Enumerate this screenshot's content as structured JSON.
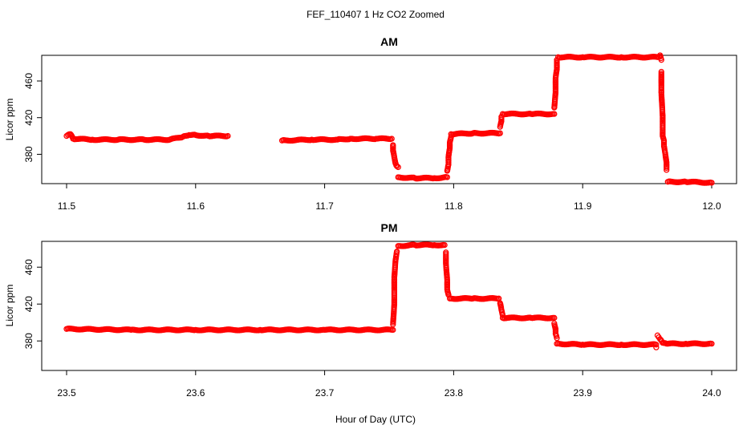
{
  "figure": {
    "title": "FEF_110407  1 Hz CO2 Zoomed",
    "xlabel": "Hour of Day (UTC)"
  },
  "colors": {
    "points": "#ff0000",
    "axes": "#000000"
  },
  "chart_data": [
    {
      "type": "scatter",
      "title": "AM",
      "xlabel": "Hour of Day (UTC)",
      "ylabel": "Licor ppm",
      "xlim": [
        11.5,
        12.0
      ],
      "ylim": [
        348,
        488
      ],
      "xticks": [
        "11.5",
        "11.6",
        "11.7",
        "11.8",
        "11.9",
        "12.0"
      ],
      "yticks": [
        "380",
        "420",
        "460"
      ],
      "grid": false,
      "series": [
        {
          "segments": [
            [
              [
                11.5,
                400
              ],
              [
                11.503,
                402
              ],
              [
                11.505,
                397
              ],
              [
                11.52,
                396
              ],
              [
                11.54,
                396
              ],
              [
                11.56,
                396
              ],
              [
                11.58,
                396
              ],
              [
                11.59,
                399
              ],
              [
                11.595,
                401
              ],
              [
                11.6,
                401
              ],
              [
                11.61,
                400
              ],
              [
                11.625,
                400
              ]
            ],
            [
              [
                11.667,
                395
              ],
              [
                11.69,
                396
              ],
              [
                11.71,
                396
              ],
              [
                11.72,
                397
              ],
              [
                11.74,
                397
              ],
              [
                11.752,
                397
              ]
            ],
            [
              [
                11.753,
                390
              ],
              [
                11.753,
                384
              ],
              [
                11.754,
                377
              ],
              [
                11.755,
                370
              ],
              [
                11.756,
                367
              ],
              [
                11.757,
                366
              ]
            ],
            [
              [
                11.757,
                355
              ],
              [
                11.77,
                354
              ],
              [
                11.785,
                354
              ],
              [
                11.795,
                355
              ]
            ],
            [
              [
                11.795,
                362
              ],
              [
                11.796,
                369
              ],
              [
                11.796,
                377
              ],
              [
                11.797,
                387
              ],
              [
                11.797,
                393
              ],
              [
                11.798,
                399
              ]
            ],
            [
              [
                11.798,
                402
              ],
              [
                11.815,
                403
              ],
              [
                11.836,
                403
              ]
            ],
            [
              [
                11.836,
                410
              ],
              [
                11.837,
                416
              ],
              [
                11.837,
                421
              ]
            ],
            [
              [
                11.838,
                424
              ],
              [
                11.86,
                424
              ],
              [
                11.878,
                424
              ]
            ],
            [
              [
                11.878,
                431
              ],
              [
                11.879,
                447
              ],
              [
                11.879,
                463
              ],
              [
                11.88,
                473
              ],
              [
                11.88,
                483
              ]
            ],
            [
              [
                11.881,
                486
              ],
              [
                11.9,
                486
              ],
              [
                11.93,
                486
              ],
              [
                11.958,
                486
              ],
              [
                11.96,
                488
              ],
              [
                11.961,
                483
              ]
            ],
            [
              [
                11.961,
                470
              ],
              [
                11.961,
                447
              ],
              [
                11.962,
                422
              ],
              [
                11.962,
                400
              ],
              [
                11.963,
                395
              ],
              [
                11.963,
                389
              ],
              [
                11.964,
                381
              ],
              [
                11.965,
                371
              ],
              [
                11.965,
                363
              ]
            ],
            [
              [
                11.966,
                350
              ],
              [
                11.98,
                350
              ],
              [
                12.0,
                349
              ]
            ]
          ]
        }
      ]
    },
    {
      "type": "scatter",
      "title": "PM",
      "xlabel": "Hour of Day (UTC)",
      "ylabel": "Licor ppm",
      "xlim": [
        23.5,
        24.0
      ],
      "ylim": [
        348,
        488
      ],
      "xticks": [
        "23.5",
        "23.6",
        "23.7",
        "23.8",
        "23.9",
        "24.0"
      ],
      "yticks": [
        "380",
        "420",
        "460"
      ],
      "grid": false,
      "series": [
        {
          "segments": [
            [
              [
                23.5,
                393
              ],
              [
                23.55,
                392
              ],
              [
                23.6,
                392
              ],
              [
                23.65,
                392
              ],
              [
                23.7,
                392
              ],
              [
                23.753,
                392
              ]
            ],
            [
              [
                23.753,
                398
              ],
              [
                23.754,
                420
              ],
              [
                23.754,
                449
              ],
              [
                23.755,
                468
              ],
              [
                23.756,
                477
              ]
            ],
            [
              [
                23.757,
                483
              ],
              [
                23.77,
                484
              ],
              [
                23.785,
                484
              ],
              [
                23.793,
                484
              ]
            ],
            [
              [
                23.794,
                476
              ],
              [
                23.794,
                464
              ],
              [
                23.795,
                446
              ],
              [
                23.795,
                436
              ],
              [
                23.796,
                430
              ]
            ],
            [
              [
                23.797,
                426
              ],
              [
                23.815,
                426
              ],
              [
                23.835,
                426
              ]
            ],
            [
              [
                23.836,
                421
              ],
              [
                23.837,
                414
              ],
              [
                23.838,
                408
              ]
            ],
            [
              [
                23.838,
                405
              ],
              [
                23.86,
                405
              ],
              [
                23.878,
                405
              ]
            ],
            [
              [
                23.878,
                399
              ],
              [
                23.879,
                393
              ],
              [
                23.879,
                388
              ],
              [
                23.88,
                383
              ]
            ],
            [
              [
                23.88,
                377
              ],
              [
                23.9,
                376
              ],
              [
                23.93,
                376
              ],
              [
                23.957,
                376
              ]
            ],
            [
              [
                23.957,
                373
              ]
            ],
            [
              [
                23.958,
                386
              ],
              [
                23.959,
                384
              ],
              [
                23.96,
                382
              ],
              [
                23.962,
                378
              ],
              [
                23.965,
                377
              ],
              [
                23.98,
                377
              ],
              [
                24.0,
                377
              ]
            ]
          ]
        }
      ]
    }
  ]
}
